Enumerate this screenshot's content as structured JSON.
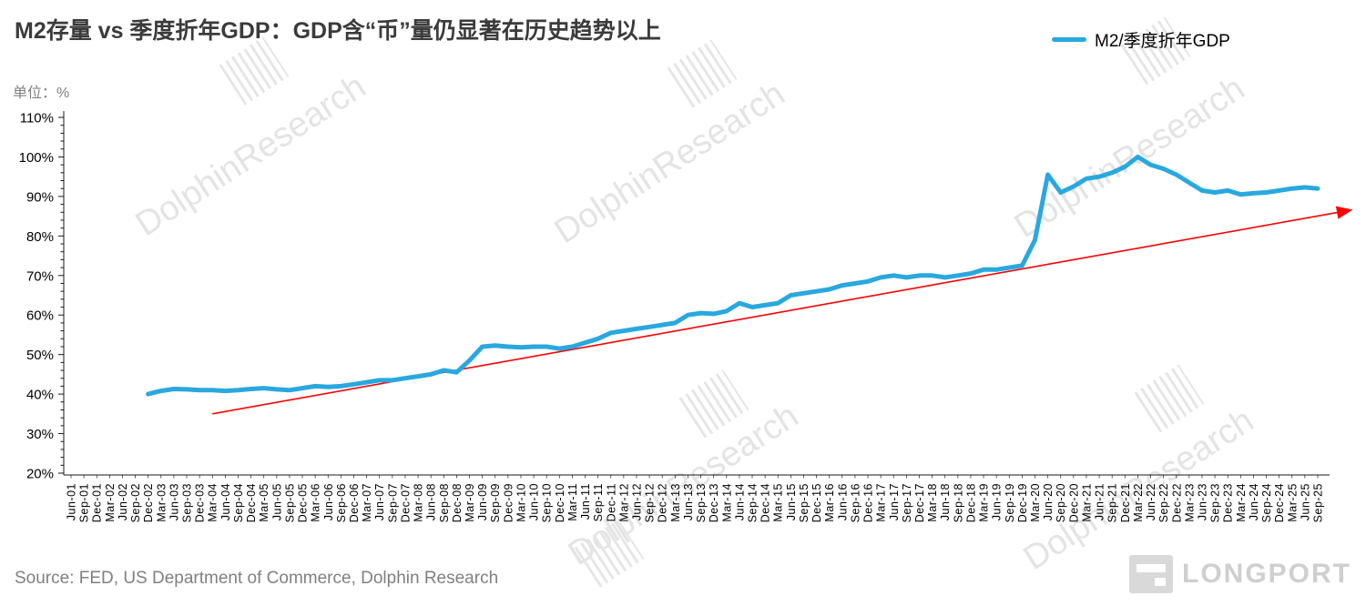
{
  "header": {
    "title": "M2存量 vs 季度折年GDP：GDP含“币”量仍显著在历史趋势以上",
    "unit_label": "单位：%",
    "legend": {
      "label": "M2/季度折年GDP",
      "color": "#29A8DF"
    }
  },
  "chart_data": {
    "type": "line",
    "title": "M2存量 vs 季度折年GDP：GDP含“币”量仍显著在历史趋势以上",
    "xlabel": "",
    "ylabel": "%",
    "ylim": [
      20,
      110
    ],
    "y_tick_step": 10,
    "grid": false,
    "legend_position": "top-right",
    "x_labels": [
      "Jun-01",
      "Sep-01",
      "Dec-01",
      "Mar-02",
      "Jun-02",
      "Sep-02",
      "Dec-02",
      "Mar-03",
      "Jun-03",
      "Sep-03",
      "Dec-03",
      "Mar-04",
      "Jun-04",
      "Sep-04",
      "Dec-04",
      "Mar-05",
      "Jun-05",
      "Sep-05",
      "Dec-05",
      "Mar-06",
      "Jun-06",
      "Sep-06",
      "Dec-06",
      "Mar-07",
      "Jun-07",
      "Sep-07",
      "Dec-07",
      "Mar-08",
      "Jun-08",
      "Sep-08",
      "Dec-08",
      "Mar-09",
      "Jun-09",
      "Sep-09",
      "Dec-09",
      "Mar-10",
      "Jun-10",
      "Sep-10",
      "Dec-10",
      "Mar-11",
      "Jun-11",
      "Sep-11",
      "Dec-11",
      "Mar-12",
      "Jun-12",
      "Sep-12",
      "Dec-12",
      "Mar-13",
      "Jun-13",
      "Sep-13",
      "Dec-13",
      "Mar-14",
      "Jun-14",
      "Sep-14",
      "Dec-14",
      "Mar-15",
      "Jun-15",
      "Sep-15",
      "Dec-15",
      "Mar-16",
      "Jun-16",
      "Sep-16",
      "Dec-16",
      "Mar-17",
      "Jun-17",
      "Sep-17",
      "Dec-17",
      "Mar-18",
      "Jun-18",
      "Sep-18",
      "Dec-18",
      "Mar-19",
      "Jun-19",
      "Sep-19",
      "Dec-19",
      "Mar-20",
      "Jun-20",
      "Sep-20",
      "Dec-20",
      "Mar-21",
      "Jun-21",
      "Sep-21",
      "Dec-21",
      "Mar-22",
      "Jun-22",
      "Sep-22",
      "Dec-22",
      "Mar-23",
      "Jun-23",
      "Sep-23",
      "Dec-23",
      "Mar-24",
      "Jun-24",
      "Sep-24",
      "Dec-24",
      "Mar-25",
      "Jun-25",
      "Sep-25"
    ],
    "series": [
      {
        "name": "M2/季度折年GDP",
        "color": "#29A8DF",
        "start_index": 6,
        "values": [
          40,
          40.8,
          41.3,
          41.2,
          41,
          41,
          40.8,
          41,
          41.3,
          41.5,
          41.2,
          41,
          41.5,
          42,
          41.8,
          42,
          42.5,
          43,
          43.5,
          43.5,
          44,
          44.5,
          45,
          46,
          45.5,
          48.5,
          52,
          52.3,
          52,
          51.8,
          52,
          52,
          51.5,
          52,
          53,
          54,
          55.5,
          56,
          56.5,
          57,
          57.5,
          58,
          60,
          60.5,
          60.3,
          61,
          63,
          62,
          62.5,
          63,
          65,
          65.5,
          66,
          66.5,
          67.5,
          68,
          68.5,
          69.5,
          70,
          69.5,
          70,
          70,
          69.5,
          70,
          70.5,
          71.5,
          71.5,
          72,
          72.5,
          79,
          95.5,
          91,
          92.5,
          94.5,
          95,
          96,
          97.5,
          100,
          98,
          97,
          95.5,
          93.5,
          91.5,
          91,
          91.5,
          90.5,
          90.8,
          91,
          91.5,
          92,
          92.3,
          92
        ]
      }
    ],
    "trendline": {
      "name": "historical-trend",
      "color": "#FF0000",
      "x_start_index": 11,
      "y_start": 35,
      "x_end_index": 99.5,
      "y_end": 86.5
    }
  },
  "watermark": {
    "text": "DolphinResearch"
  },
  "footer": {
    "source": "Source: FED, US Department of Commerce, Dolphin Research",
    "logo_text": "LONGPORT"
  }
}
